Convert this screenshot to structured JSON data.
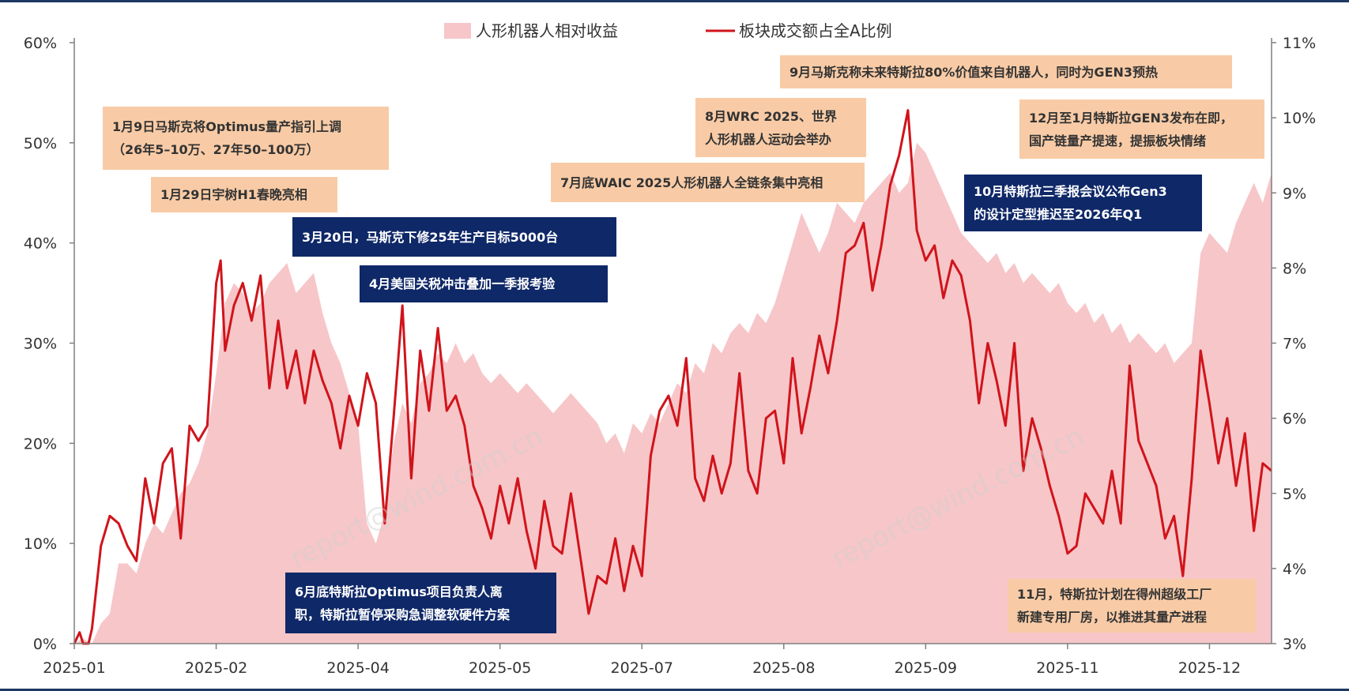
{
  "colors": {
    "area": "#f7c6c9",
    "line": "#d0141b",
    "axis": "#7f7f7f",
    "peach_box": "#f8cba6",
    "navy_box": "#0f2868",
    "frame": "#1f3864"
  },
  "watermarks": [
    "report@wind.com.cn",
    "report@wind.com.cn"
  ],
  "annotations": [
    {
      "id": "anno-jan9",
      "style": "peach",
      "lines": [
        "1月9日马斯克将Optimus量产指引上调",
        "（26年5–10万、27年50–100万）"
      ]
    },
    {
      "id": "anno-jan29",
      "style": "peach",
      "lines": [
        "1月29日宇树H1春晚亮相"
      ]
    },
    {
      "id": "anno-mar20",
      "style": "navy",
      "lines": [
        "3月20日，马斯克下修25年生产目标5000台"
      ]
    },
    {
      "id": "anno-apr",
      "style": "navy",
      "lines": [
        "4月美国关税冲击叠加一季报考验"
      ]
    },
    {
      "id": "anno-jun",
      "style": "navy",
      "lines": [
        "6月底特斯拉Optimus项目负责人离",
        "职，特斯拉暂停采购急调整软硬件方案"
      ]
    },
    {
      "id": "anno-jul",
      "style": "peach",
      "lines": [
        "7月底WAIC 2025人形机器人全链条集中亮相"
      ]
    },
    {
      "id": "anno-aug",
      "style": "peach",
      "lines": [
        "8月WRC 2025、世界",
        "人形机器人运动会举办"
      ]
    },
    {
      "id": "anno-sep",
      "style": "peach",
      "lines": [
        "9月马斯克称未来特斯拉80%价值来自机器人，同时为GEN3预热"
      ]
    },
    {
      "id": "anno-oct",
      "style": "navy",
      "lines": [
        "10月特斯拉三季报会议公布Gen3",
        "的设计定型推迟至2026年Q1"
      ]
    },
    {
      "id": "anno-nov",
      "style": "peach",
      "lines": [
        "11月，特斯拉计划在得州超级工厂",
        "新建专用厂房，以推进其量产进程"
      ]
    },
    {
      "id": "anno-dec",
      "style": "peach",
      "lines": [
        "12月至1月特斯拉GEN3发布在即，",
        "国产链量产提速，提振板块情绪"
      ]
    }
  ],
  "chart_data": {
    "type": "area",
    "legend_position": "top-center",
    "grid": false,
    "x_tick_labels": [
      "2025-01",
      "2025-02",
      "2025-04",
      "2025-05",
      "2025-07",
      "2025-08",
      "2025-09",
      "2025-11",
      "2025-12"
    ],
    "x_tick_positions": [
      0,
      16,
      32,
      48,
      64,
      80,
      96,
      112,
      128
    ],
    "x_range": [
      0,
      135
    ],
    "y_left": {
      "range": [
        0,
        60
      ],
      "ticks": [
        0,
        10,
        20,
        30,
        40,
        50,
        60
      ],
      "tick_labels": [
        "0%",
        "10%",
        "20%",
        "30%",
        "40%",
        "50%",
        "60%"
      ]
    },
    "y_right": {
      "range": [
        3,
        11
      ],
      "ticks": [
        3,
        4,
        5,
        6,
        7,
        8,
        9,
        10,
        11
      ],
      "tick_labels": [
        "3%",
        "4%",
        "5%",
        "6%",
        "7%",
        "8%",
        "9%",
        "10%",
        "11%"
      ]
    },
    "series": [
      {
        "name": "人形机器人相对收益",
        "type": "area",
        "axis": "left",
        "points": [
          [
            0,
            0
          ],
          [
            1,
            0.5
          ],
          [
            2,
            0
          ],
          [
            3,
            2
          ],
          [
            4,
            3
          ],
          [
            5,
            8
          ],
          [
            6,
            8
          ],
          [
            7,
            7
          ],
          [
            8,
            10
          ],
          [
            9,
            12
          ],
          [
            10,
            11
          ],
          [
            11,
            13
          ],
          [
            12,
            15
          ],
          [
            13,
            16
          ],
          [
            14,
            18
          ],
          [
            15,
            21
          ],
          [
            16,
            27
          ],
          [
            17,
            34
          ],
          [
            18,
            36
          ],
          [
            19,
            35
          ],
          [
            20,
            33
          ],
          [
            21,
            34
          ],
          [
            22,
            36
          ],
          [
            23,
            37
          ],
          [
            24,
            38
          ],
          [
            25,
            35
          ],
          [
            26,
            36
          ],
          [
            27,
            37
          ],
          [
            28,
            33
          ],
          [
            29,
            30
          ],
          [
            30,
            28
          ],
          [
            31,
            25
          ],
          [
            32,
            22
          ],
          [
            33,
            12
          ],
          [
            34,
            10
          ],
          [
            35,
            13
          ],
          [
            36,
            20
          ],
          [
            37,
            24
          ],
          [
            38,
            22
          ],
          [
            39,
            26
          ],
          [
            40,
            27
          ],
          [
            41,
            29
          ],
          [
            42,
            28
          ],
          [
            43,
            30
          ],
          [
            44,
            28
          ],
          [
            45,
            29
          ],
          [
            46,
            27
          ],
          [
            47,
            26
          ],
          [
            48,
            27
          ],
          [
            49,
            26
          ],
          [
            50,
            25
          ],
          [
            51,
            26
          ],
          [
            52,
            25
          ],
          [
            53,
            24
          ],
          [
            54,
            23
          ],
          [
            55,
            24
          ],
          [
            56,
            25
          ],
          [
            57,
            24
          ],
          [
            58,
            23
          ],
          [
            59,
            22
          ],
          [
            60,
            20
          ],
          [
            61,
            21
          ],
          [
            62,
            19
          ],
          [
            63,
            22
          ],
          [
            64,
            21
          ],
          [
            65,
            23
          ],
          [
            66,
            22
          ],
          [
            67,
            24
          ],
          [
            68,
            26
          ],
          [
            69,
            25
          ],
          [
            70,
            28
          ],
          [
            71,
            27
          ],
          [
            72,
            30
          ],
          [
            73,
            29
          ],
          [
            74,
            31
          ],
          [
            75,
            32
          ],
          [
            76,
            31
          ],
          [
            77,
            33
          ],
          [
            78,
            32
          ],
          [
            79,
            34
          ],
          [
            80,
            37
          ],
          [
            81,
            40
          ],
          [
            82,
            43
          ],
          [
            83,
            41
          ],
          [
            84,
            39
          ],
          [
            85,
            41
          ],
          [
            86,
            44
          ],
          [
            87,
            43
          ],
          [
            88,
            42
          ],
          [
            89,
            44
          ],
          [
            90,
            45
          ],
          [
            91,
            46
          ],
          [
            92,
            47
          ],
          [
            93,
            45
          ],
          [
            94,
            46
          ],
          [
            95,
            50
          ],
          [
            96,
            49
          ],
          [
            97,
            47
          ],
          [
            98,
            45
          ],
          [
            99,
            43
          ],
          [
            100,
            41
          ],
          [
            101,
            40
          ],
          [
            102,
            39
          ],
          [
            103,
            38
          ],
          [
            104,
            39
          ],
          [
            105,
            37
          ],
          [
            106,
            38
          ],
          [
            107,
            36
          ],
          [
            108,
            37
          ],
          [
            109,
            36
          ],
          [
            110,
            35
          ],
          [
            111,
            36
          ],
          [
            112,
            34
          ],
          [
            113,
            33
          ],
          [
            114,
            34
          ],
          [
            115,
            32
          ],
          [
            116,
            33
          ],
          [
            117,
            31
          ],
          [
            118,
            32
          ],
          [
            119,
            30
          ],
          [
            120,
            31
          ],
          [
            121,
            30
          ],
          [
            122,
            29
          ],
          [
            123,
            30
          ],
          [
            124,
            28
          ],
          [
            125,
            29
          ],
          [
            126,
            30
          ],
          [
            127,
            39
          ],
          [
            128,
            41
          ],
          [
            129,
            40
          ],
          [
            130,
            39
          ],
          [
            131,
            42
          ],
          [
            132,
            44
          ],
          [
            133,
            46
          ],
          [
            134,
            44
          ],
          [
            135,
            47
          ]
        ]
      },
      {
        "name": "板块成交额占全A比例",
        "type": "line",
        "axis": "right",
        "points": [
          [
            0,
            3.0
          ],
          [
            0.6,
            3.15
          ],
          [
            1,
            3.0
          ],
          [
            1.6,
            2.9
          ],
          [
            2,
            3.2
          ],
          [
            3,
            4.3
          ],
          [
            4,
            4.7
          ],
          [
            5,
            4.6
          ],
          [
            6,
            4.3
          ],
          [
            7,
            4.1
          ],
          [
            8,
            5.2
          ],
          [
            9,
            4.6
          ],
          [
            10,
            5.4
          ],
          [
            11,
            5.6
          ],
          [
            12,
            4.4
          ],
          [
            13,
            5.9
          ],
          [
            14,
            5.7
          ],
          [
            15,
            5.9
          ],
          [
            16,
            7.8
          ],
          [
            16.5,
            8.1
          ],
          [
            17,
            6.9
          ],
          [
            18,
            7.5
          ],
          [
            19,
            7.8
          ],
          [
            20,
            7.3
          ],
          [
            21,
            7.9
          ],
          [
            22,
            6.4
          ],
          [
            23,
            7.3
          ],
          [
            24,
            6.4
          ],
          [
            25,
            6.9
          ],
          [
            26,
            6.2
          ],
          [
            27,
            6.9
          ],
          [
            28,
            6.5
          ],
          [
            29,
            6.2
          ],
          [
            30,
            5.6
          ],
          [
            31,
            6.3
          ],
          [
            32,
            5.9
          ],
          [
            33,
            6.6
          ],
          [
            34,
            6.2
          ],
          [
            35,
            4.6
          ],
          [
            36,
            6.0
          ],
          [
            37,
            7.5
          ],
          [
            38,
            5.2
          ],
          [
            39,
            6.9
          ],
          [
            40,
            6.1
          ],
          [
            41,
            7.2
          ],
          [
            42,
            6.1
          ],
          [
            43,
            6.3
          ],
          [
            44,
            5.9
          ],
          [
            45,
            5.1
          ],
          [
            46,
            4.8
          ],
          [
            47,
            4.4
          ],
          [
            48,
            5.1
          ],
          [
            49,
            4.6
          ],
          [
            50,
            5.2
          ],
          [
            51,
            4.5
          ],
          [
            52,
            4.0
          ],
          [
            53,
            4.9
          ],
          [
            54,
            4.3
          ],
          [
            55,
            4.2
          ],
          [
            56,
            5.0
          ],
          [
            57,
            4.2
          ],
          [
            58,
            3.4
          ],
          [
            59,
            3.9
          ],
          [
            60,
            3.8
          ],
          [
            61,
            4.4
          ],
          [
            62,
            3.7
          ],
          [
            63,
            4.3
          ],
          [
            64,
            3.9
          ],
          [
            65,
            5.5
          ],
          [
            66,
            6.1
          ],
          [
            67,
            6.3
          ],
          [
            68,
            5.9
          ],
          [
            69,
            6.8
          ],
          [
            70,
            5.2
          ],
          [
            71,
            4.9
          ],
          [
            72,
            5.5
          ],
          [
            73,
            5.0
          ],
          [
            74,
            5.4
          ],
          [
            75,
            6.6
          ],
          [
            76,
            5.3
          ],
          [
            77,
            5.0
          ],
          [
            78,
            6.0
          ],
          [
            79,
            6.1
          ],
          [
            80,
            5.4
          ],
          [
            81,
            6.8
          ],
          [
            82,
            5.8
          ],
          [
            83,
            6.4
          ],
          [
            84,
            7.1
          ],
          [
            85,
            6.6
          ],
          [
            86,
            7.3
          ],
          [
            87,
            8.2
          ],
          [
            88,
            8.3
          ],
          [
            89,
            8.6
          ],
          [
            90,
            7.7
          ],
          [
            91,
            8.3
          ],
          [
            92,
            9.1
          ],
          [
            93,
            9.5
          ],
          [
            94,
            10.1
          ],
          [
            95,
            8.5
          ],
          [
            96,
            8.1
          ],
          [
            97,
            8.3
          ],
          [
            98,
            7.6
          ],
          [
            99,
            8.1
          ],
          [
            100,
            7.9
          ],
          [
            101,
            7.3
          ],
          [
            102,
            6.2
          ],
          [
            103,
            7.0
          ],
          [
            104,
            6.5
          ],
          [
            105,
            5.9
          ],
          [
            106,
            7.0
          ],
          [
            107,
            5.3
          ],
          [
            108,
            6.0
          ],
          [
            109,
            5.6
          ],
          [
            110,
            5.1
          ],
          [
            111,
            4.7
          ],
          [
            112,
            4.2
          ],
          [
            113,
            4.3
          ],
          [
            114,
            5.0
          ],
          [
            115,
            4.8
          ],
          [
            116,
            4.6
          ],
          [
            117,
            5.3
          ],
          [
            118,
            4.6
          ],
          [
            119,
            6.7
          ],
          [
            120,
            5.7
          ],
          [
            121,
            5.4
          ],
          [
            122,
            5.1
          ],
          [
            123,
            4.4
          ],
          [
            124,
            4.7
          ],
          [
            125,
            3.9
          ],
          [
            126,
            5.2
          ],
          [
            127,
            6.9
          ],
          [
            128,
            6.2
          ],
          [
            129,
            5.4
          ],
          [
            130,
            6.0
          ],
          [
            131,
            5.1
          ],
          [
            132,
            5.8
          ],
          [
            133,
            4.5
          ],
          [
            134,
            5.4
          ],
          [
            135,
            5.3
          ]
        ]
      }
    ]
  }
}
